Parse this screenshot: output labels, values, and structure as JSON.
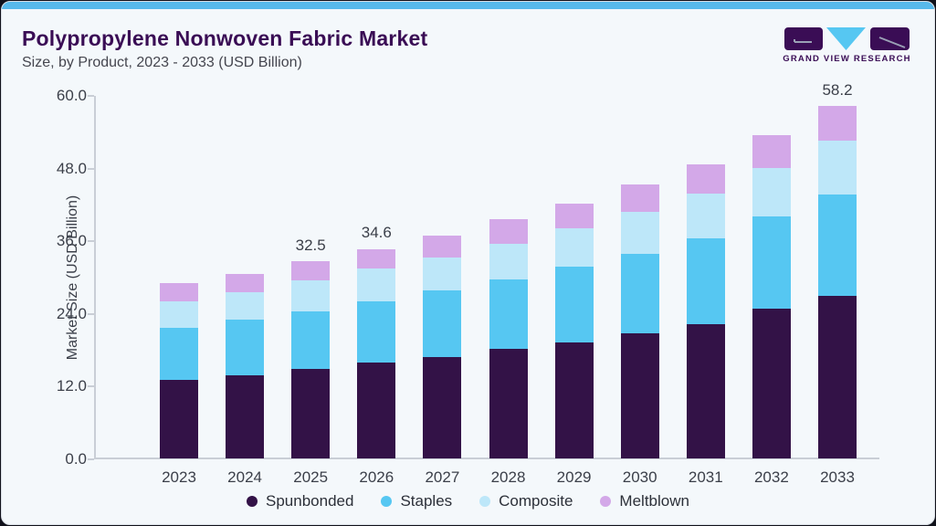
{
  "header": {
    "title": "Polypropylene Nonwoven Fabric Market",
    "subtitle": "Size, by Product, 2023 - 2033 (USD Billion)"
  },
  "logo": {
    "brand": "GRAND VIEW RESEARCH"
  },
  "chart_data": {
    "type": "bar",
    "stacked": true,
    "title": "Polypropylene Nonwoven Fabric Market",
    "subtitle": "Size, by Product, 2023 - 2033 (USD Billion)",
    "categories": [
      "2023",
      "2024",
      "2025",
      "2026",
      "2027",
      "2028",
      "2029",
      "2030",
      "2031",
      "2032",
      "2033"
    ],
    "series": [
      {
        "name": "Spunbonded",
        "color": "#331247",
        "values": [
          13.0,
          13.7,
          14.8,
          15.8,
          16.7,
          18.1,
          19.2,
          20.7,
          22.2,
          24.8,
          26.9
        ]
      },
      {
        "name": "Staples",
        "color": "#56C7F2",
        "values": [
          8.6,
          9.2,
          9.5,
          10.2,
          11.0,
          11.4,
          12.5,
          13.1,
          14.1,
          15.1,
          16.7
        ]
      },
      {
        "name": "Composite",
        "color": "#BDE7F9",
        "values": [
          4.4,
          4.6,
          5.1,
          5.4,
          5.5,
          6.0,
          6.3,
          6.9,
          7.4,
          8.0,
          8.9
        ]
      },
      {
        "name": "Meltblown",
        "color": "#D3A8E8",
        "values": [
          2.9,
          3.0,
          3.1,
          3.2,
          3.6,
          4.0,
          4.1,
          4.5,
          4.9,
          5.5,
          5.7
        ]
      }
    ],
    "bar_total_labels": [
      "",
      "",
      "32.5",
      "34.6",
      "",
      "",
      "",
      "",
      "",
      "",
      "58.2"
    ],
    "ylabel": "Market Size (USD Billion)",
    "ylim": [
      0,
      60
    ],
    "y_ticks": [
      "0.0",
      "12.0",
      "24.0",
      "36.0",
      "48.0",
      "60.0"
    ],
    "grid": false,
    "legend_position": "bottom"
  },
  "colors": {
    "accent_bar": "#57B9EA",
    "card_background": "#F4F8FB",
    "title_text": "#3A0D55",
    "subtitle_text": "#45464F",
    "axis_text": "#3B3F49",
    "axis_line": "#C9CED6",
    "logo_purple": "#3A0D55",
    "logo_blue": "#56C7F2"
  }
}
